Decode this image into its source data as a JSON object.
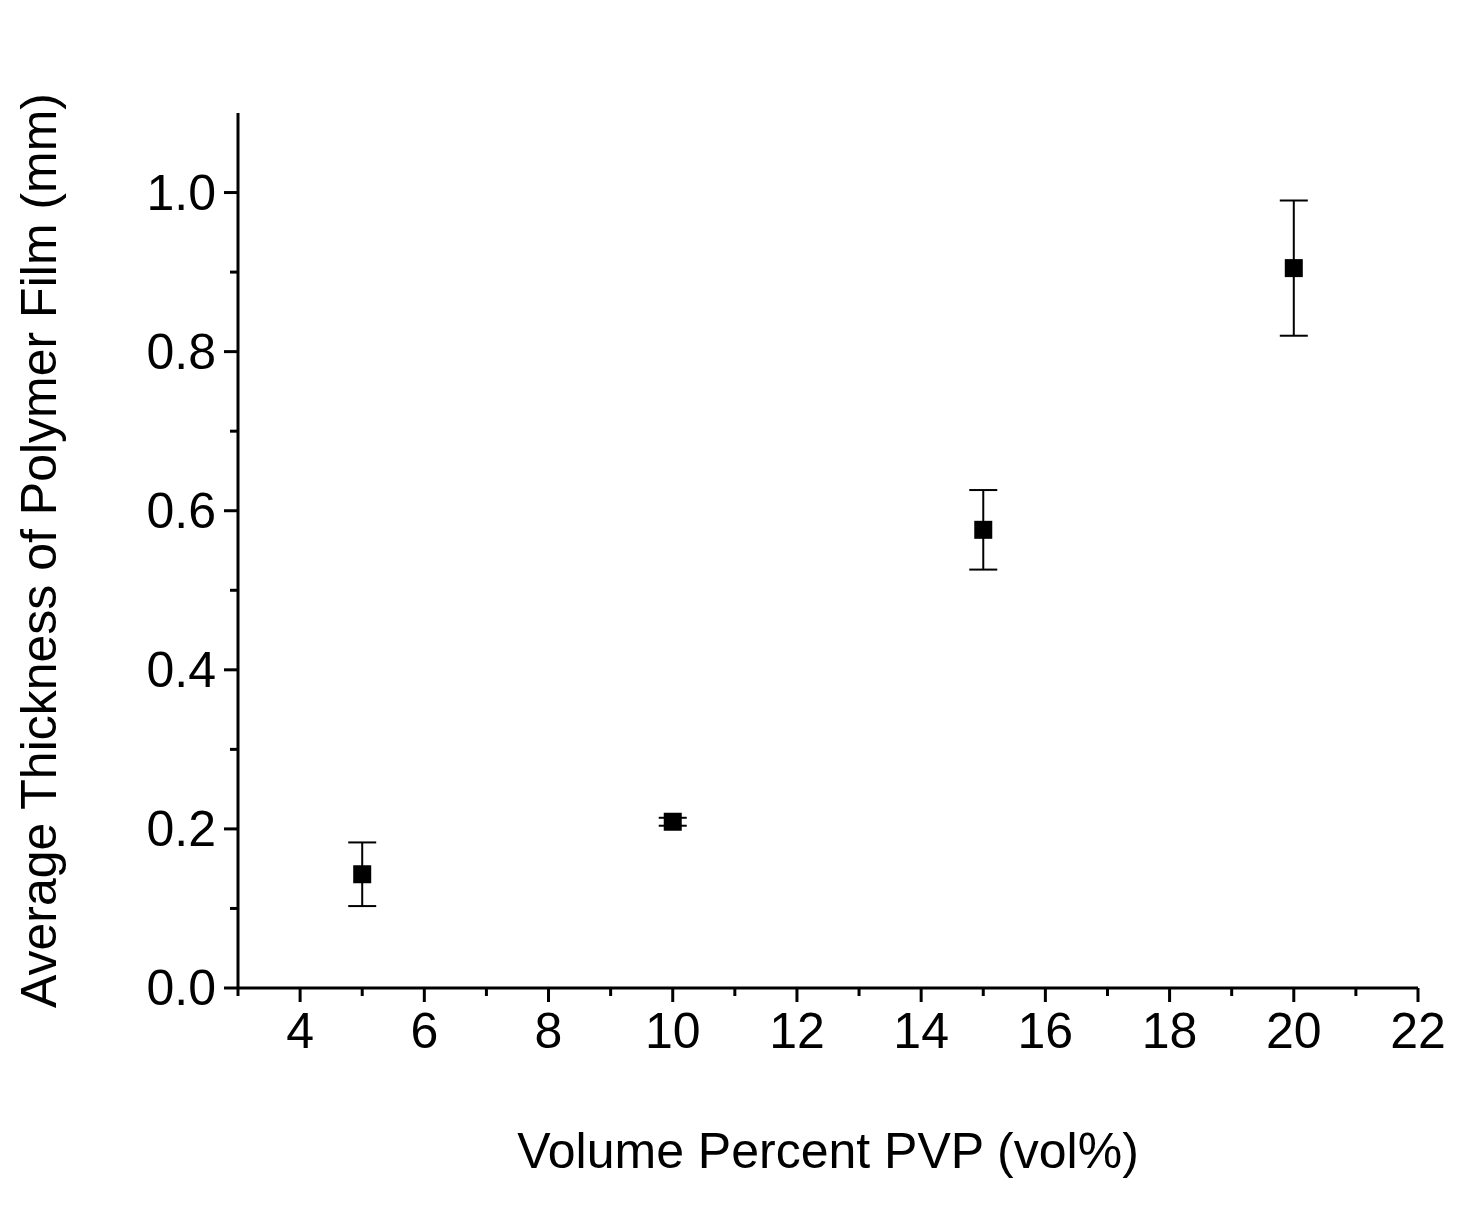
{
  "chart_data": {
    "type": "scatter",
    "xlabel": "Volume Percent PVP (vol%)",
    "ylabel": "Average Thickness of Polymer Film (mm)",
    "x": [
      5,
      10,
      15,
      20
    ],
    "series": [
      {
        "color": "#000000",
        "values": [
          0.143,
          0.209,
          0.576,
          0.905
        ],
        "errors": [
          0.04,
          0.005,
          0.05,
          0.085
        ]
      }
    ],
    "marker": "square",
    "legend": false,
    "grid": false,
    "xlim": [
      3,
      22
    ],
    "xticks": [
      {
        "value": 3,
        "label": null
      },
      4,
      {
        "value": 5,
        "label": null
      },
      6,
      {
        "value": 7,
        "label": null
      },
      8,
      {
        "value": 9,
        "label": null
      },
      10,
      {
        "value": 11,
        "label": null
      },
      12,
      {
        "value": 13,
        "label": null
      },
      14,
      {
        "value": 15,
        "label": null
      },
      16,
      {
        "value": 17,
        "label": null
      },
      18,
      {
        "value": 19,
        "label": null
      },
      20,
      {
        "value": 21,
        "label": null
      },
      22
    ],
    "ylim": [
      0,
      1.1
    ],
    "yticks": [
      {
        "value": 0,
        "label": "0.0"
      },
      {
        "value": 0.1,
        "label": null
      },
      {
        "value": 0.2,
        "label": "0.2"
      },
      {
        "value": 0.3,
        "label": null
      },
      {
        "value": 0.4,
        "label": "0.4"
      },
      {
        "value": 0.5,
        "label": null
      },
      {
        "value": 0.6,
        "label": "0.6"
      },
      {
        "value": 0.7,
        "label": null
      },
      {
        "value": 0.8,
        "label": "0.8"
      },
      {
        "value": 0.9,
        "label": null
      },
      {
        "value": 1.0,
        "label": "1.0"
      }
    ]
  }
}
